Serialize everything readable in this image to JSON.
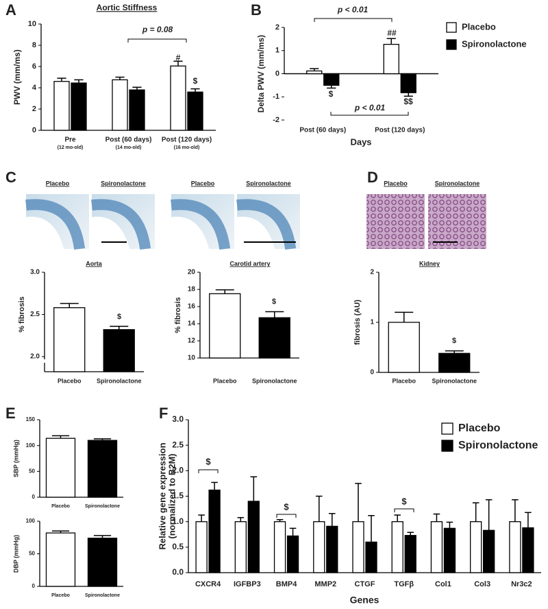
{
  "chart_data": [
    {
      "type": "bar",
      "panel": "A",
      "title": "Aortic Stiffness",
      "ylabel": "PWV (mm/ms)",
      "categories": [
        "Pre",
        "Post (60 days)",
        "Post (120 days)"
      ],
      "sublabels": [
        "(12 mo-old)",
        "(14 mo-old)",
        "(16 mo-old)"
      ],
      "series": [
        {
          "name": "Placebo",
          "color": "#ffffff",
          "values": [
            4.6,
            4.75,
            6.05
          ],
          "errors": [
            0.3,
            0.25,
            0.45
          ]
        },
        {
          "name": "Spironolactone",
          "color": "#000000",
          "values": [
            4.45,
            3.8,
            3.6
          ],
          "errors": [
            0.3,
            0.25,
            0.3
          ]
        }
      ],
      "ylim": [
        0,
        10
      ],
      "yticks": [
        0,
        2,
        4,
        6,
        8,
        10
      ],
      "annotations": [
        "p = 0.08",
        "#",
        "$"
      ]
    },
    {
      "type": "bar",
      "panel": "B",
      "ylabel": "Delta PWV (mm/ms)",
      "xlabel": "Days",
      "legend": true,
      "categories": [
        "Post (60 days)",
        "Post (120 days)"
      ],
      "series": [
        {
          "name": "Placebo",
          "color": "#ffffff",
          "values": [
            0.12,
            1.27
          ],
          "errors": [
            0.1,
            0.25
          ]
        },
        {
          "name": "Spironolactone",
          "color": "#000000",
          "values": [
            -0.5,
            -0.82
          ],
          "errors": [
            0.12,
            0.15
          ]
        }
      ],
      "ylim": [
        -2,
        2
      ],
      "yticks": [
        -2,
        -1,
        0,
        1,
        2
      ],
      "annotations": [
        "p < 0.01",
        "##",
        "$",
        "$$",
        "p < 0.01"
      ]
    },
    {
      "type": "bar",
      "panel": "C",
      "title": "Aorta",
      "image_labels": [
        "Placebo",
        "Spironolactone"
      ],
      "ylabel": "% fibrosis",
      "categories": [
        "Placebo",
        "Spironolactone"
      ],
      "values": [
        2.58,
        2.32
      ],
      "errors": [
        0.05,
        0.04
      ],
      "colors": [
        "#ffffff",
        "#000000"
      ],
      "ylim": [
        2,
        3
      ],
      "yticks": [
        {
          "value": 2,
          "label": "2.0"
        },
        2.5,
        {
          "value": 3,
          "label": "3.0"
        }
      ],
      "annotations": [
        "$"
      ]
    },
    {
      "type": "bar",
      "title": "Carotid artery",
      "image_labels": [
        "Placebo",
        "Spironolactone"
      ],
      "ylabel": "% fibrosis",
      "categories": [
        "Placebo",
        "Spironolactone"
      ],
      "values": [
        17.5,
        14.7
      ],
      "errors": [
        0.45,
        0.7
      ],
      "colors": [
        "#ffffff",
        "#000000"
      ],
      "ylim": [
        10,
        20
      ],
      "yticks": [
        10,
        12,
        14,
        16,
        18,
        20
      ],
      "annotations": [
        "$"
      ]
    },
    {
      "type": "bar",
      "panel": "D",
      "title": "Kidney",
      "image_labels": [
        "Placebo",
        "Spironolactone"
      ],
      "ylabel": "fibrosis (AU)",
      "categories": [
        "Placebo",
        "Spironolactone"
      ],
      "values": [
        1.0,
        0.38
      ],
      "errors": [
        0.2,
        0.05
      ],
      "colors": [
        "#ffffff",
        "#000000"
      ],
      "ylim": [
        0,
        2
      ],
      "yticks": [
        0,
        1,
        2
      ],
      "annotations": [
        "$"
      ]
    },
    {
      "type": "bar",
      "panel": "E",
      "ylabel": "SBP (mmHg)",
      "categories": [
        "Placebo",
        "Spironolactone"
      ],
      "values": [
        114,
        110
      ],
      "errors": [
        5,
        3
      ],
      "colors": [
        "#ffffff",
        "#000000"
      ],
      "ylim": [
        0,
        150
      ],
      "yticks": [
        0,
        50,
        100,
        150
      ]
    },
    {
      "type": "bar",
      "ylabel": "DBP (mmHg)",
      "categories": [
        "Placebo",
        "Spironolactone"
      ],
      "values": [
        82,
        74
      ],
      "errors": [
        3,
        4
      ],
      "colors": [
        "#ffffff",
        "#000000"
      ],
      "ylim": [
        0,
        100
      ],
      "yticks": [
        0,
        50,
        100
      ]
    },
    {
      "type": "bar",
      "panel": "F",
      "ylabel": [
        "Relative gene expression",
        "(normalized to B2M)"
      ],
      "xlabel": "Genes",
      "legend": true,
      "categories": [
        "CXCR4",
        "IGFBP3",
        "BMP4",
        "MMP2",
        "CTGF",
        "TGFβ",
        "Col1",
        "Col3",
        "Nr3c2"
      ],
      "series": [
        {
          "name": "Placebo",
          "color": "#ffffff",
          "values": [
            1.0,
            1.0,
            1.0,
            1.0,
            1.0,
            1.0,
            1.0,
            1.0,
            1.0
          ],
          "errors": [
            0.13,
            0.08,
            0.04,
            0.5,
            0.75,
            0.13,
            0.15,
            0.37,
            0.43
          ]
        },
        {
          "name": "Spironolactone",
          "color": "#000000",
          "values": [
            1.62,
            1.4,
            0.72,
            0.91,
            0.6,
            0.73,
            0.87,
            0.83,
            0.88
          ],
          "errors": [
            0.15,
            0.48,
            0.15,
            0.25,
            0.52,
            0.06,
            0.12,
            0.6,
            0.3
          ]
        }
      ],
      "ylim": [
        0,
        3
      ],
      "yticks": [
        {
          "value": 0,
          "label": "0.0"
        },
        0.5,
        {
          "value": 1,
          "label": "1.0"
        },
        1.5,
        {
          "value": 2,
          "label": "2.0"
        },
        2.5,
        {
          "value": 3,
          "label": "3.0"
        }
      ],
      "annotations": [
        "$",
        "$",
        "$"
      ]
    }
  ]
}
